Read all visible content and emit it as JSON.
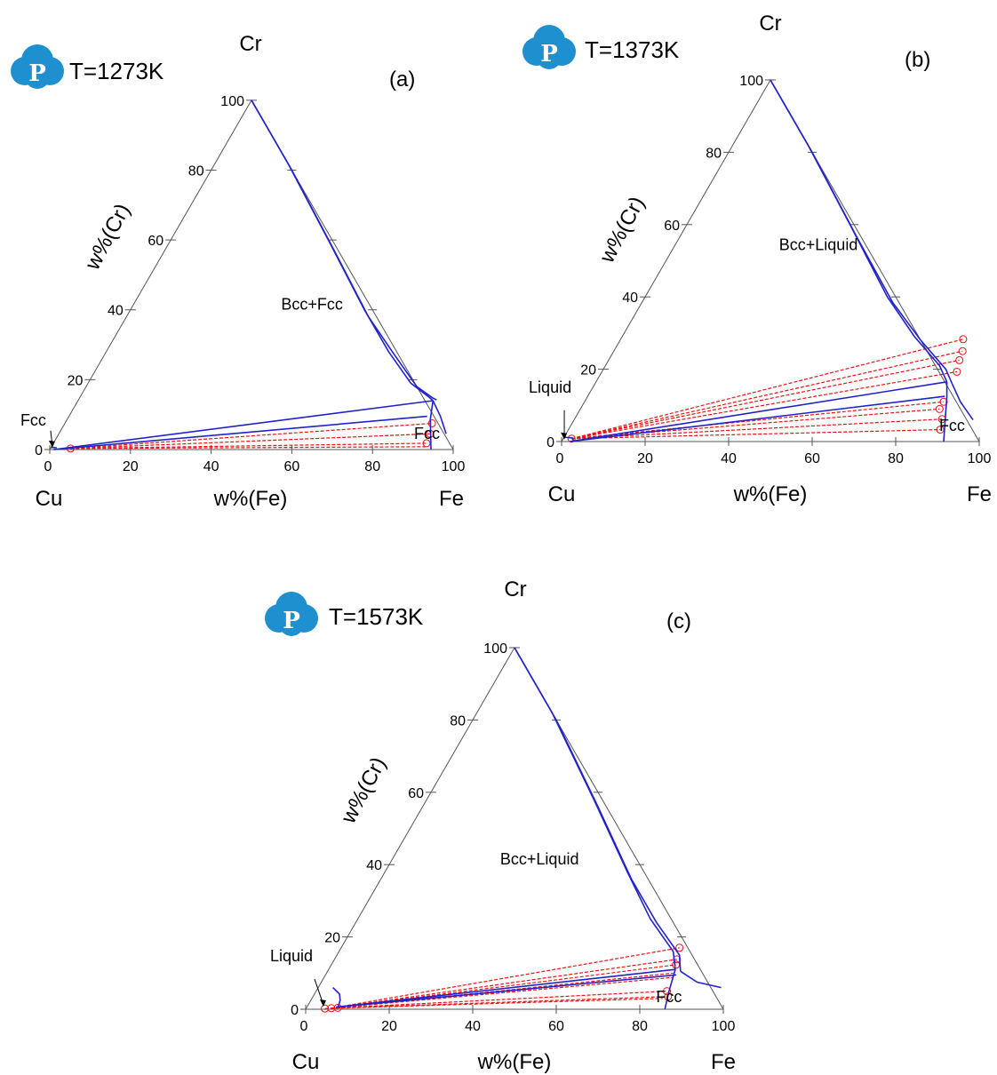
{
  "chart_data": [
    {
      "type": "ternary",
      "panel_label": "(a)",
      "title": "T=1273K",
      "logo": "p-cloud-logo",
      "vertices": {
        "left": "Cu",
        "right": "Fe",
        "top": "Cr"
      },
      "xlabel": "w%(Fe)",
      "ylabel": "w%(Cr)",
      "ticks": [
        0,
        20,
        40,
        60,
        80,
        100
      ],
      "regions": [
        {
          "label": "Bcc+Fcc",
          "at": [
            45,
            40
          ]
        },
        {
          "label": "Fcc",
          "at": [
            92,
            3
          ]
        },
        {
          "label": "Fcc",
          "at": [
            0.5,
            0.3
          ],
          "arrow": true
        }
      ],
      "boundaries": [
        [
          [
            0,
            100
          ],
          [
            18,
            82
          ],
          [
            40,
            59
          ],
          [
            58,
            40
          ],
          [
            70,
            28
          ],
          [
            80,
            19
          ],
          [
            86.5,
            15
          ],
          [
            88,
            14
          ]
        ],
        [
          [
            0,
            100
          ],
          [
            20,
            80
          ],
          [
            42,
            57
          ],
          [
            60,
            38
          ],
          [
            72,
            27
          ],
          [
            82,
            18
          ],
          [
            87.5,
            14.8
          ],
          [
            88.8,
            14.2
          ]
        ],
        [
          [
            88,
            14
          ],
          [
            90,
            8.7
          ],
          [
            94.5,
            0
          ]
        ],
        [
          [
            88,
            14
          ],
          [
            92,
            9.6
          ],
          [
            96,
            4.5
          ]
        ],
        [
          [
            88,
            14
          ],
          [
            1,
            0
          ]
        ],
        [
          [
            88.8,
            9.5
          ],
          [
            1,
            0
          ]
        ],
        [
          [
            0,
            0.6
          ],
          [
            1.5,
            0.5
          ]
        ]
      ],
      "tie_lines": [
        [
          [
            5,
            0.3
          ],
          [
            91,
            7.5
          ]
        ],
        [
          [
            5,
            0.3
          ],
          [
            92,
            4.5
          ]
        ],
        [
          [
            5,
            0.3
          ],
          [
            92.5,
            1.8
          ]
        ],
        [
          [
            5,
            0.3
          ],
          [
            93,
            0.8
          ]
        ]
      ],
      "tie_end_markers": [
        [
          91,
          7.5
        ],
        [
          92,
          4.5
        ],
        [
          92.5,
          1.8
        ],
        [
          5,
          0.3
        ]
      ]
    },
    {
      "type": "ternary",
      "panel_label": "(b)",
      "title": "T=1373K",
      "logo": "p-cloud-logo",
      "vertices": {
        "left": "Cu",
        "right": "Fe",
        "top": "Cr"
      },
      "xlabel": "w%(Fe)",
      "ylabel": "w%(Cr)",
      "ticks": [
        0,
        20,
        40,
        60,
        80,
        100
      ],
      "regions": [
        {
          "label": "Bcc+Liquid",
          "at": [
            35,
            53
          ]
        },
        {
          "label": "Fcc",
          "at": [
            92,
            3
          ]
        },
        {
          "label": "Liquid",
          "at": [
            0.5,
            0.3
          ],
          "arrow": true
        }
      ],
      "boundaries": [
        [
          [
            0,
            100
          ],
          [
            18,
            82
          ],
          [
            40,
            59
          ],
          [
            58,
            40
          ],
          [
            70,
            29
          ],
          [
            80,
            21
          ],
          [
            84,
            16.5
          ]
        ],
        [
          [
            0,
            100
          ],
          [
            20,
            80
          ],
          [
            42,
            57
          ],
          [
            60,
            38.5
          ],
          [
            72,
            28
          ],
          [
            82,
            20
          ],
          [
            85.5,
            16
          ]
        ],
        [
          [
            84,
            16.5
          ],
          [
            86,
            12.5
          ],
          [
            91.5,
            0
          ]
        ],
        [
          [
            85.5,
            16
          ],
          [
            90,
            11
          ],
          [
            95.5,
            6
          ]
        ],
        [
          [
            84,
            16.5
          ],
          [
            2,
            0
          ]
        ],
        [
          [
            85.5,
            12.5
          ],
          [
            2,
            0
          ]
        ],
        [
          [
            0,
            1.2
          ],
          [
            2,
            1
          ],
          [
            3,
            0
          ]
        ]
      ],
      "tie_lines": [
        [
          [
            2,
            0.8
          ],
          [
            82,
            28.3
          ]
        ],
        [
          [
            2,
            0.8
          ],
          [
            83.5,
            25
          ]
        ],
        [
          [
            2,
            0.8
          ],
          [
            84,
            22.5
          ]
        ],
        [
          [
            2,
            0.8
          ],
          [
            85,
            19.3
          ]
        ],
        [
          [
            2,
            0.8
          ],
          [
            86,
            11
          ]
        ],
        [
          [
            2,
            0.8
          ],
          [
            86,
            9
          ]
        ],
        [
          [
            2,
            0.8
          ],
          [
            88,
            6.2
          ]
        ],
        [
          [
            2,
            0.8
          ],
          [
            89,
            3.3
          ]
        ]
      ],
      "tie_end_markers": [
        [
          82,
          28.3
        ],
        [
          83.5,
          25
        ],
        [
          84,
          22.5
        ],
        [
          85,
          19.3
        ],
        [
          86,
          11
        ],
        [
          86,
          9
        ],
        [
          88,
          6.2
        ],
        [
          89,
          3.3
        ],
        [
          2,
          0.8
        ]
      ]
    },
    {
      "type": "ternary",
      "panel_label": "(c)",
      "title": "T=1573K",
      "logo": "p-cloud-logo",
      "vertices": {
        "left": "Cu",
        "right": "Fe",
        "top": "Cr"
      },
      "xlabel": "w%(Fe)",
      "ylabel": "w%(Cr)",
      "ticks": [
        0,
        20,
        40,
        60,
        80,
        100
      ],
      "regions": [
        {
          "label": "Bcc+Liquid",
          "at": [
            36,
            40
          ]
        },
        {
          "label": "Fcc",
          "at": [
            86,
            2
          ]
        },
        {
          "label": "Liquid",
          "at": [
            4,
            0.5
          ],
          "arrow": true
        }
      ],
      "boundaries": [
        [
          [
            0,
            100
          ],
          [
            18,
            82
          ],
          [
            40,
            58
          ],
          [
            58,
            38
          ],
          [
            70,
            25
          ],
          [
            80,
            16
          ],
          [
            83,
            11
          ]
        ],
        [
          [
            0,
            100
          ],
          [
            20,
            80
          ],
          [
            42,
            56
          ],
          [
            60,
            36
          ],
          [
            72,
            24
          ],
          [
            82,
            15
          ],
          [
            84.5,
            10.5
          ]
        ],
        [
          [
            83,
            11
          ],
          [
            84.5,
            5
          ],
          [
            86,
            0
          ]
        ],
        [
          [
            84.5,
            10.5
          ],
          [
            90,
            7.5
          ],
          [
            96.5,
            6
          ]
        ],
        [
          [
            83,
            11
          ],
          [
            7,
            0.6
          ]
        ],
        [
          [
            84,
            9.5
          ],
          [
            7,
            0.6
          ]
        ],
        [
          [
            3.5,
            6
          ],
          [
            6,
            4.2
          ],
          [
            7,
            2.5
          ],
          [
            7.5,
            0.5
          ]
        ]
      ],
      "tie_lines": [
        [
          [
            6,
            0.3
          ],
          [
            81,
            17
          ]
        ],
        [
          [
            6,
            0.3
          ],
          [
            82,
            13.8
          ]
        ],
        [
          [
            6,
            0.3
          ],
          [
            82.5,
            12.3
          ]
        ],
        [
          [
            6,
            0.3
          ],
          [
            83,
            10
          ]
        ],
        [
          [
            6,
            0.3
          ],
          [
            83.5,
            8.8
          ]
        ],
        [
          [
            6,
            0.3
          ],
          [
            84,
            5
          ]
        ],
        [
          [
            6,
            0.3
          ],
          [
            85,
            3.5
          ]
        ],
        [
          [
            4.5,
            0.2
          ],
          [
            84,
            3
          ]
        ]
      ],
      "tie_end_markers": [
        [
          81,
          17
        ],
        [
          82,
          13.8
        ],
        [
          82.5,
          12.3
        ],
        [
          84,
          5
        ],
        [
          85,
          3.5
        ],
        [
          4.5,
          0.2
        ],
        [
          6,
          0.3
        ],
        [
          7.5,
          0.4
        ]
      ]
    }
  ],
  "colors": {
    "boundary": "#2222cc",
    "tie_line": "#ee1111",
    "axis": "#555555",
    "logo": "#1e8fcf"
  }
}
